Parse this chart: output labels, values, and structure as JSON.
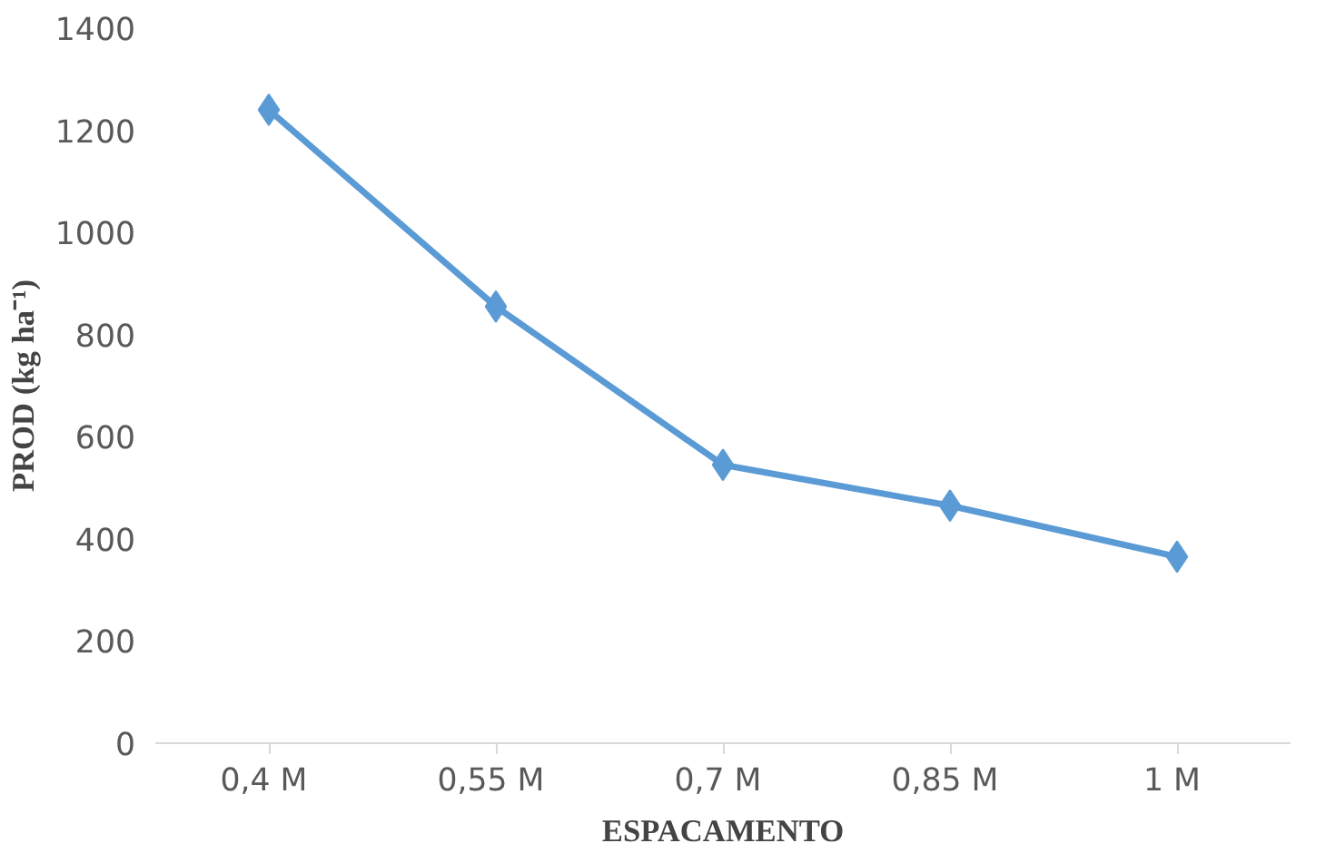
{
  "chart_data": {
    "type": "line",
    "xlabel": "ESPACAMENTO",
    "ylabel": "PROD (kg ha⁻¹)",
    "categories": [
      "0,4  M",
      "0,55  M",
      "0,7  M",
      "0,85  M",
      "1  M"
    ],
    "series": [
      {
        "color": "#5b9bd5",
        "values": [
          1240,
          855,
          545,
          465,
          365
        ]
      }
    ],
    "ylim": [
      0,
      1400
    ],
    "yticks": [
      0,
      200,
      400,
      600,
      800,
      1000,
      1200,
      1400
    ],
    "marker": "diamond",
    "line_style": "solid"
  }
}
